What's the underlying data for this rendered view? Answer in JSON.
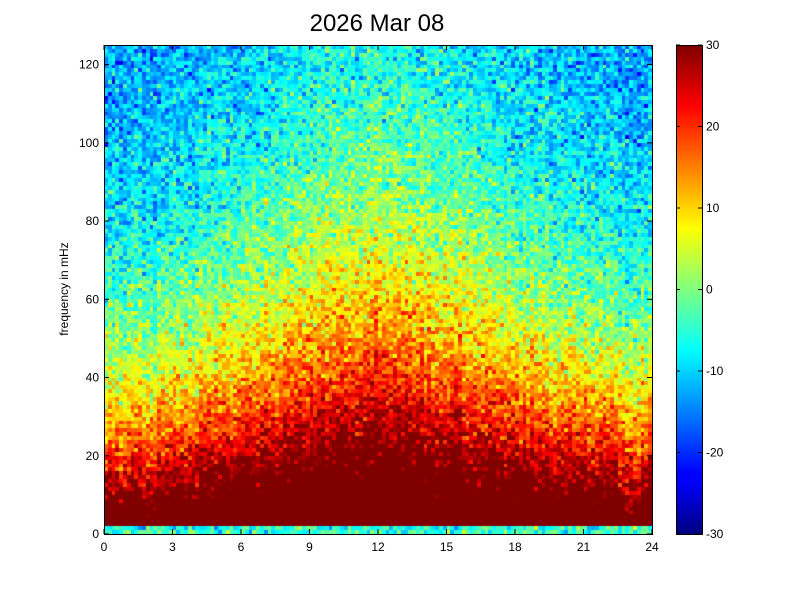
{
  "chart_data": {
    "type": "heatmap",
    "title": "2026 Mar 08",
    "xlabel": "",
    "ylabel": "frequency in mHz",
    "xlim": [
      0,
      24
    ],
    "ylim": [
      0,
      125
    ],
    "xticks": [
      0,
      3,
      6,
      9,
      12,
      15,
      18,
      21,
      24
    ],
    "yticks": [
      0,
      20,
      40,
      60,
      80,
      100,
      120
    ],
    "colorbar": {
      "range": [
        -30,
        30
      ],
      "ticks": [
        30,
        20,
        10,
        0,
        -10,
        -20,
        -30
      ],
      "colormap": "jet"
    },
    "grid": false,
    "grid_shape": {
      "time_bins": 144,
      "freq_bins": 125
    },
    "trend": {
      "description": "power in dB; strongest (~30) near 0-10 mHz all day, peaking midday; decreases with frequency to about -15 at 120 mHz",
      "low_freq_level": 30,
      "high_freq_level": -15,
      "midday_peak_hour": 12
    }
  }
}
